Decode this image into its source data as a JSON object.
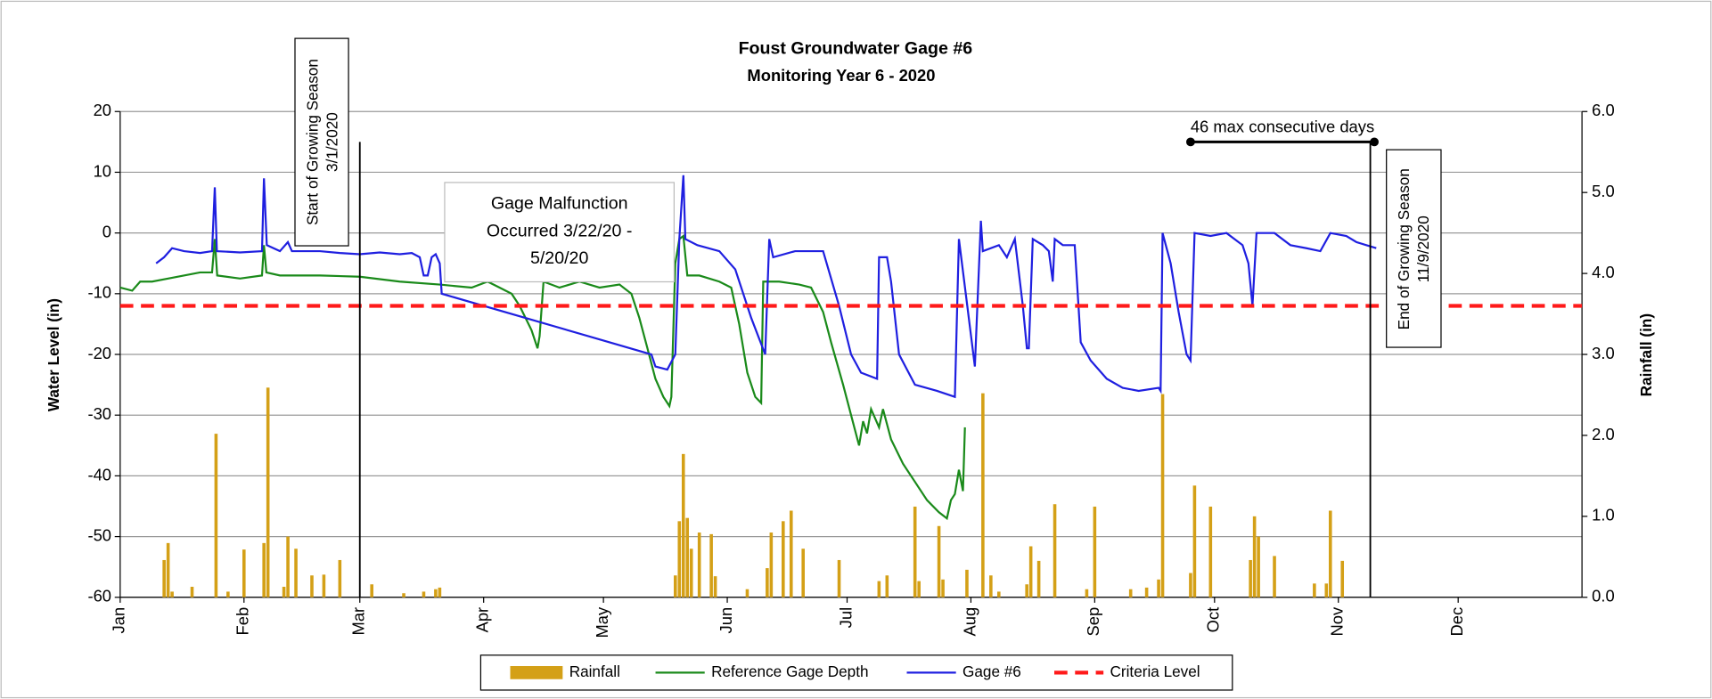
{
  "chart_data": {
    "type": "line",
    "title": "Foust Groundwater Gage #6",
    "subtitle": "Monitoring Year 6 - 2020",
    "y_label": "Water Level (in)",
    "y2_label": "Rainfall (in)",
    "xlim": [
      0,
      366
    ],
    "xticks": [
      {
        "value": 0,
        "label": "Jan"
      },
      {
        "value": 31,
        "label": "Feb"
      },
      {
        "value": 60,
        "label": "Mar"
      },
      {
        "value": 91,
        "label": "Apr"
      },
      {
        "value": 121,
        "label": "May"
      },
      {
        "value": 152,
        "label": "Jun"
      },
      {
        "value": 182,
        "label": "Jul"
      },
      {
        "value": 213,
        "label": "Aug"
      },
      {
        "value": 244,
        "label": "Sep"
      },
      {
        "value": 274,
        "label": "Oct"
      },
      {
        "value": 305,
        "label": "Nov"
      },
      {
        "value": 335,
        "label": "Dec"
      }
    ],
    "ylim": [
      -60,
      20
    ],
    "yticks": [
      -60,
      -50,
      -40,
      -30,
      -20,
      -10,
      0,
      10,
      20
    ],
    "y2lim": [
      0,
      6
    ],
    "y2ticks": [
      {
        "value": 0,
        "label": "0.0"
      },
      {
        "value": 1,
        "label": "1.0"
      },
      {
        "value": 2,
        "label": "2.0"
      },
      {
        "value": 3,
        "label": "3.0"
      },
      {
        "value": 4,
        "label": "4.0"
      },
      {
        "value": 5,
        "label": "5.0"
      },
      {
        "value": 6,
        "label": "6.0"
      }
    ],
    "grid": true,
    "series": [
      {
        "name": "Rainfall",
        "type": "bar",
        "axis": "y2",
        "color": "#d4a017",
        "x": [
          11,
          12,
          13,
          18,
          24,
          27,
          31,
          36,
          37,
          41,
          42,
          44,
          48,
          51,
          55,
          63,
          71,
          76,
          79,
          80,
          139,
          140,
          141,
          142,
          143,
          145,
          148,
          149,
          157,
          162,
          163,
          166,
          168,
          171,
          180,
          190,
          192,
          199,
          200,
          205,
          206,
          212,
          216,
          218,
          220,
          227,
          228,
          230,
          234,
          242,
          244,
          253,
          257,
          260,
          261,
          268,
          269,
          273,
          283,
          284,
          285,
          289,
          299,
          302,
          303,
          306
        ],
        "values": [
          0.46,
          0.67,
          0.07,
          0.13,
          2.02,
          0.07,
          0.59,
          0.67,
          2.59,
          0.13,
          0.75,
          0.6,
          0.27,
          0.28,
          0.46,
          0.16,
          0.05,
          0.07,
          0.1,
          0.12,
          0.27,
          0.94,
          1.77,
          0.98,
          0.6,
          0.8,
          0.78,
          0.26,
          0.1,
          0.36,
          0.8,
          0.94,
          1.07,
          0.6,
          0.46,
          0.2,
          0.27,
          1.12,
          0.2,
          0.88,
          0.22,
          0.34,
          2.52,
          0.27,
          0.07,
          0.16,
          0.63,
          0.45,
          1.15,
          0.1,
          1.12,
          0.1,
          0.12,
          0.22,
          2.51,
          0.3,
          1.38,
          1.12,
          0.46,
          1.0,
          0.75,
          0.51,
          0.17,
          0.17,
          1.07,
          0.45
        ]
      },
      {
        "name": "Reference Gage Depth",
        "color": "#1a8a1a",
        "x": [
          0,
          3,
          5,
          8,
          12,
          20,
          23,
          23.7,
          24.3,
          30,
          35.5,
          36,
          36.6,
          40,
          50,
          60,
          70,
          80,
          88,
          92,
          95,
          98,
          100,
          103,
          104.5,
          105,
          106,
          110,
          115,
          120,
          125,
          128,
          130,
          132,
          134,
          136,
          137.5,
          138,
          139,
          140,
          141,
          142,
          145,
          150,
          153,
          155,
          157,
          159,
          160.5,
          161,
          165,
          170,
          173,
          176,
          178,
          181,
          183,
          185,
          186,
          187,
          188,
          190,
          191,
          193,
          196,
          199,
          202,
          205,
          207,
          208,
          209,
          210,
          211,
          211.5
        ],
        "values": [
          -9,
          -9.5,
          -8,
          -8,
          -7.5,
          -6.5,
          -6.5,
          -1,
          -7,
          -7.5,
          -7,
          -2,
          -6.5,
          -7,
          -7,
          -7.2,
          -8,
          -8.5,
          -9,
          -8,
          -9,
          -10,
          -12,
          -16,
          -19,
          -17,
          -8,
          -9,
          -8,
          -9,
          -8.5,
          -10,
          -14,
          -19,
          -24,
          -27,
          -28.5,
          -27,
          -5,
          -1,
          -0.5,
          -7,
          -7,
          -8,
          -9,
          -15,
          -23,
          -27,
          -28,
          -8,
          -8,
          -8.5,
          -9,
          -13,
          -18,
          -25,
          -30,
          -35,
          -31,
          -33,
          -29,
          -32,
          -29,
          -34,
          -38,
          -41,
          -44,
          -46,
          -47,
          -44,
          -43,
          -39,
          -42.5,
          -32
        ]
      },
      {
        "name": "Gage #6",
        "color": "#1f1fe0",
        "x": [
          9,
          11,
          13,
          16,
          20,
          23,
          23.7,
          24.2,
          30,
          35.5,
          36,
          36.7,
          40,
          42,
          43,
          50,
          55,
          60,
          65,
          70,
          73,
          75,
          76,
          77,
          78,
          79,
          80,
          80.5,
          133,
          134,
          137,
          139,
          140,
          141,
          141.5,
          144.5,
          150,
          154,
          158,
          161.5,
          162.5,
          163.5,
          169,
          173,
          176,
          180,
          183,
          185.5,
          189.5,
          190,
          192,
          193,
          195,
          199,
          204.5,
          209,
          210,
          214,
          215.5,
          216,
          220,
          222,
          224,
          226,
          227,
          227.5,
          228.5,
          231,
          232.5,
          233.5,
          234,
          236,
          239,
          240.5,
          243,
          247,
          251,
          255,
          260,
          260.5,
          261,
          263,
          265,
          267,
          268,
          269,
          273,
          277,
          281,
          282.5,
          283.5,
          284.5,
          289,
          293,
          297,
          300.5,
          303,
          307,
          309.5,
          312,
          314.5
        ],
        "values": [
          -5,
          -4,
          -2.5,
          -3,
          -3.3,
          -3,
          7.5,
          -3,
          -3.2,
          -3,
          9,
          -2,
          -3,
          -1.5,
          -3,
          -3,
          -3.3,
          -3.5,
          -3.2,
          -3.5,
          -3.3,
          -4,
          -7,
          -7,
          -4,
          -3.5,
          -5,
          -10,
          -20,
          -22,
          -22.5,
          -20,
          -1,
          9.5,
          -1,
          -2,
          -3,
          -6,
          -14,
          -20,
          -1,
          -4,
          -3,
          -3,
          -3,
          -12,
          -20,
          -23,
          -24,
          -4,
          -4,
          -8,
          -20,
          -25,
          -26,
          -27,
          -1,
          -22,
          2,
          -3,
          -2,
          -4,
          -1,
          -12,
          -19,
          -19,
          -1,
          -2,
          -3,
          -8,
          -1,
          -2,
          -2,
          -18,
          -21,
          -24,
          -25.5,
          -26,
          -25.5,
          -26,
          0,
          -5,
          -13,
          -20,
          -21,
          0,
          -0.5,
          0,
          -2,
          -5,
          -12,
          0,
          0,
          -2,
          -2.5,
          -3,
          0,
          -0.5,
          -1.5,
          -2,
          -2.5
        ]
      },
      {
        "name": "Criteria Level",
        "color": "#ff1a1a",
        "dash": true,
        "x": [
          0,
          366
        ],
        "values": [
          -12,
          -12
        ]
      }
    ],
    "annotations": [
      {
        "text": [
          "Start of Growing Season",
          "3/1/2020"
        ],
        "x": 60
      },
      {
        "text": [
          "End of Growing Season",
          "11/9/2020"
        ],
        "x": 313
      },
      {
        "text": [
          "Gage Malfunction",
          "Occurred 3/22/20 -",
          "5/20/20"
        ]
      },
      {
        "text": "46 max consecutive days",
        "x": [
          268,
          314
        ],
        "y": 15
      }
    ]
  }
}
